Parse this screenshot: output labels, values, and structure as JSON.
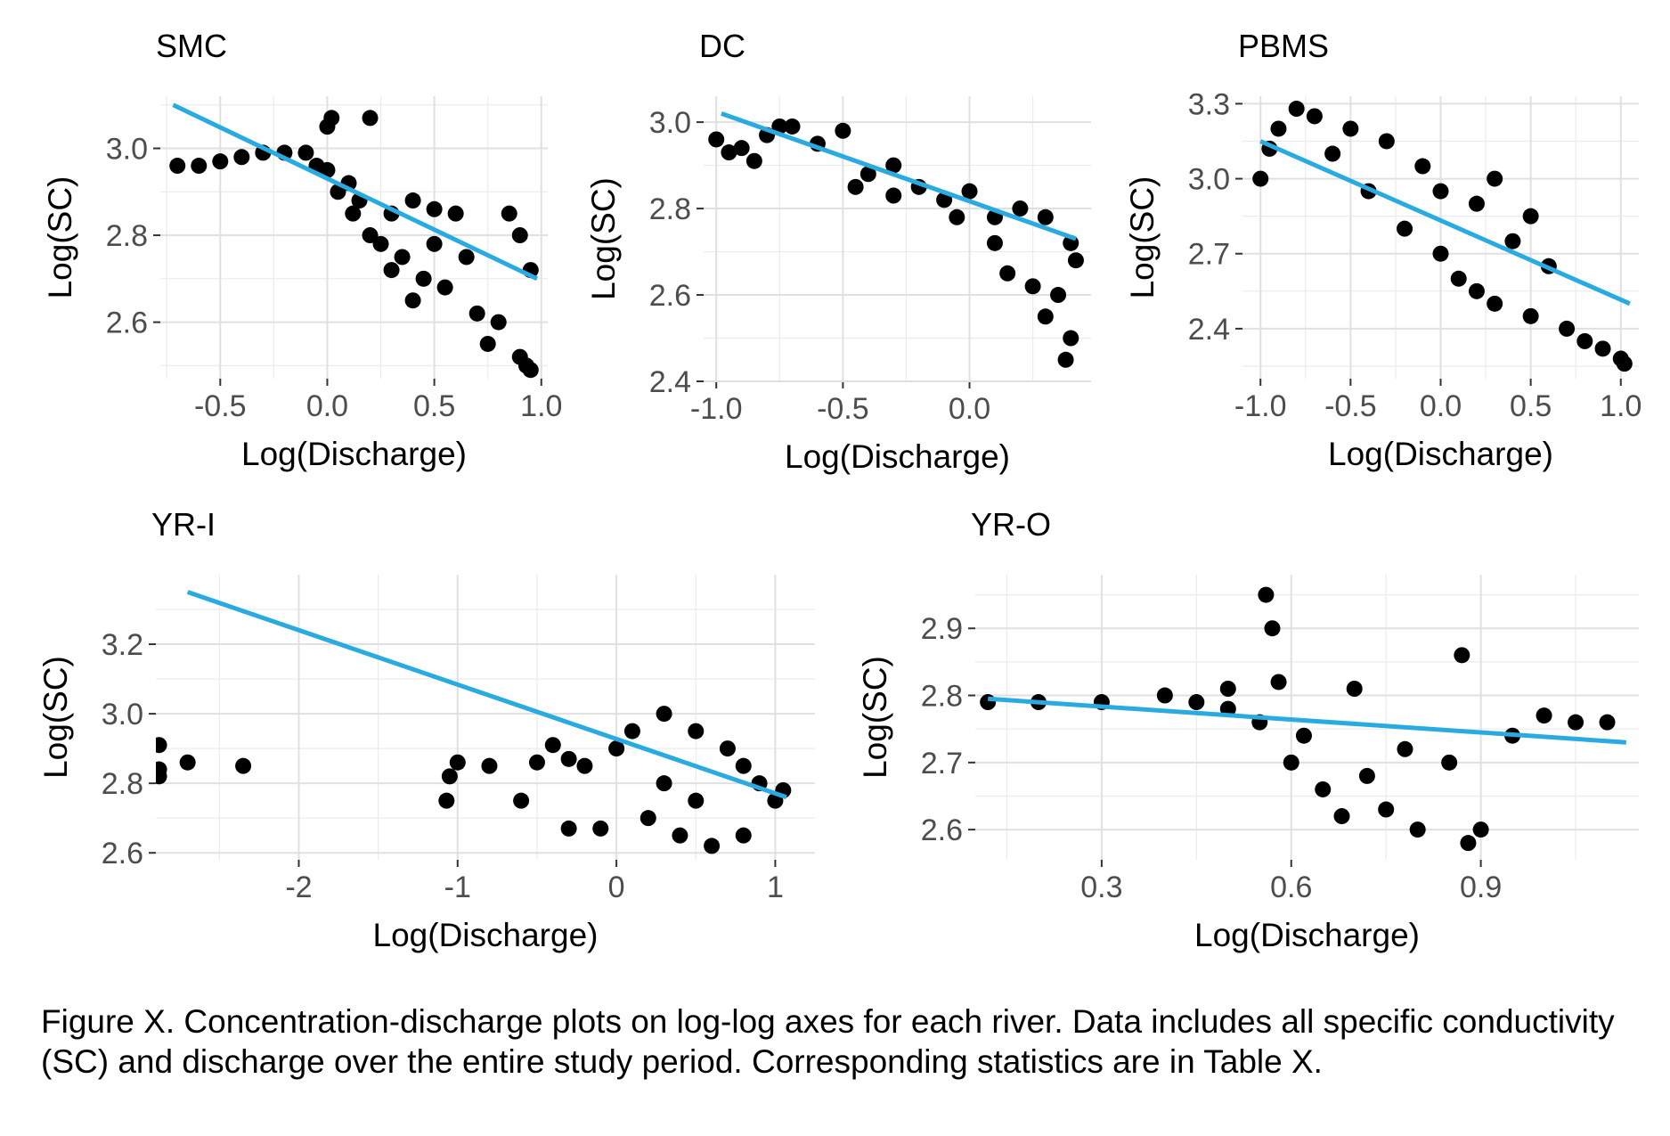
{
  "page": {
    "caption": "Figure X. Concentration-discharge plots on log-log axes for each river. Data includes all specific conductivity (SC) and discharge over the entire study period. Corresponding statistics are in Table X."
  },
  "colors": {
    "points": "#000000",
    "fit_line": "#29ABE2",
    "grid": "#E0E0E0"
  },
  "chart_data": [
    {
      "type": "scatter",
      "title": "SMC",
      "xlabel": "Log(Discharge)",
      "ylabel": "Log(SC)",
      "xlim": [
        -0.78,
        1.03
      ],
      "ylim": [
        2.47,
        3.12
      ],
      "xticks": [
        -0.5,
        0.0,
        0.5,
        1.0
      ],
      "xtick_labels": [
        "-0.5",
        "0.0",
        "0.5",
        "1.0"
      ],
      "yticks": [
        2.6,
        2.8,
        3.0
      ],
      "ytick_labels": [
        "2.6",
        "2.8",
        "3.0"
      ],
      "grid": true,
      "fit_line": [
        [
          -0.72,
          3.1
        ],
        [
          0.98,
          2.7
        ]
      ],
      "points": [
        [
          -0.7,
          2.96
        ],
        [
          -0.6,
          2.96
        ],
        [
          -0.5,
          2.97
        ],
        [
          -0.4,
          2.98
        ],
        [
          -0.3,
          2.99
        ],
        [
          -0.2,
          2.99
        ],
        [
          -0.1,
          2.99
        ],
        [
          -0.05,
          2.96
        ],
        [
          0.0,
          2.95
        ],
        [
          0.0,
          3.05
        ],
        [
          0.02,
          3.07
        ],
        [
          0.05,
          2.9
        ],
        [
          0.1,
          2.92
        ],
        [
          0.12,
          2.85
        ],
        [
          0.15,
          2.88
        ],
        [
          0.2,
          3.07
        ],
        [
          0.2,
          2.8
        ],
        [
          0.25,
          2.78
        ],
        [
          0.3,
          2.85
        ],
        [
          0.3,
          2.72
        ],
        [
          0.35,
          2.75
        ],
        [
          0.4,
          2.88
        ],
        [
          0.4,
          2.65
        ],
        [
          0.45,
          2.7
        ],
        [
          0.5,
          2.86
        ],
        [
          0.5,
          2.78
        ],
        [
          0.55,
          2.68
        ],
        [
          0.6,
          2.85
        ],
        [
          0.65,
          2.75
        ],
        [
          0.7,
          2.62
        ],
        [
          0.75,
          2.55
        ],
        [
          0.8,
          2.6
        ],
        [
          0.85,
          2.85
        ],
        [
          0.9,
          2.8
        ],
        [
          0.9,
          2.52
        ],
        [
          0.93,
          2.5
        ],
        [
          0.95,
          2.72
        ],
        [
          0.95,
          2.49
        ]
      ]
    },
    {
      "type": "scatter",
      "title": "DC",
      "xlabel": "Log(Discharge)",
      "ylabel": "Log(SC)",
      "xlim": [
        -1.05,
        0.48
      ],
      "ylim": [
        2.4,
        3.06
      ],
      "xticks": [
        -1.0,
        -0.5,
        0.0
      ],
      "xtick_labels": [
        "-1.0",
        "-0.5",
        "0.0"
      ],
      "yticks": [
        2.4,
        2.6,
        2.8,
        3.0
      ],
      "ytick_labels": [
        "2.4",
        "2.6",
        "2.8",
        "3.0"
      ],
      "grid": true,
      "fit_line": [
        [
          -0.98,
          3.02
        ],
        [
          0.42,
          2.73
        ]
      ],
      "points": [
        [
          -1.0,
          2.96
        ],
        [
          -0.95,
          2.93
        ],
        [
          -0.9,
          2.94
        ],
        [
          -0.85,
          2.91
        ],
        [
          -0.8,
          2.97
        ],
        [
          -0.75,
          2.99
        ],
        [
          -0.7,
          2.99
        ],
        [
          -0.6,
          2.95
        ],
        [
          -0.5,
          2.98
        ],
        [
          -0.45,
          2.85
        ],
        [
          -0.4,
          2.88
        ],
        [
          -0.3,
          2.9
        ],
        [
          -0.3,
          2.83
        ],
        [
          -0.2,
          2.85
        ],
        [
          -0.1,
          2.82
        ],
        [
          -0.05,
          2.78
        ],
        [
          0.0,
          2.84
        ],
        [
          0.1,
          2.78
        ],
        [
          0.1,
          2.72
        ],
        [
          0.15,
          2.65
        ],
        [
          0.2,
          2.8
        ],
        [
          0.25,
          2.62
        ],
        [
          0.3,
          2.78
        ],
        [
          0.3,
          2.55
        ],
        [
          0.35,
          2.6
        ],
        [
          0.38,
          2.45
        ],
        [
          0.4,
          2.5
        ],
        [
          0.4,
          2.72
        ],
        [
          0.42,
          2.68
        ]
      ]
    },
    {
      "type": "scatter",
      "title": "PBMS",
      "xlabel": "Log(Discharge)",
      "ylabel": "Log(SC)",
      "xlim": [
        -1.1,
        1.1
      ],
      "ylim": [
        2.2,
        3.33
      ],
      "xticks": [
        -1.0,
        -0.5,
        0.0,
        0.5,
        1.0
      ],
      "xtick_labels": [
        "-1.0",
        "-0.5",
        "0.0",
        "0.5",
        "1.0"
      ],
      "yticks": [
        2.4,
        2.7,
        3.0,
        3.3
      ],
      "ytick_labels": [
        "2.4",
        "2.7",
        "3.0",
        "3.3"
      ],
      "grid": true,
      "fit_line": [
        [
          -1.0,
          3.15
        ],
        [
          1.05,
          2.5
        ]
      ],
      "points": [
        [
          -1.0,
          3.0
        ],
        [
          -0.95,
          3.12
        ],
        [
          -0.9,
          3.2
        ],
        [
          -0.8,
          3.28
        ],
        [
          -0.7,
          3.25
        ],
        [
          -0.6,
          3.1
        ],
        [
          -0.5,
          3.2
        ],
        [
          -0.4,
          2.95
        ],
        [
          -0.3,
          3.15
        ],
        [
          -0.2,
          2.8
        ],
        [
          -0.1,
          3.05
        ],
        [
          0.0,
          2.7
        ],
        [
          0.0,
          2.95
        ],
        [
          0.1,
          2.6
        ],
        [
          0.2,
          2.9
        ],
        [
          0.2,
          2.55
        ],
        [
          0.3,
          3.0
        ],
        [
          0.3,
          2.5
        ],
        [
          0.4,
          2.75
        ],
        [
          0.5,
          2.85
        ],
        [
          0.5,
          2.45
        ],
        [
          0.6,
          2.65
        ],
        [
          0.7,
          2.4
        ],
        [
          0.8,
          2.35
        ],
        [
          0.9,
          2.32
        ],
        [
          1.0,
          2.28
        ],
        [
          1.02,
          2.26
        ]
      ]
    },
    {
      "type": "scatter",
      "title": "YR-I",
      "xlabel": "Log(Discharge)",
      "ylabel": "Log(SC)",
      "xlim": [
        -2.9,
        1.25
      ],
      "ylim": [
        2.58,
        3.4
      ],
      "xticks": [
        -2,
        -1,
        0,
        1
      ],
      "xtick_labels": [
        "-2",
        "-1",
        "0",
        "1"
      ],
      "yticks": [
        2.6,
        2.8,
        3.0,
        3.2
      ],
      "ytick_labels": [
        "2.6",
        "2.8",
        "3.0",
        "3.2"
      ],
      "grid": true,
      "fit_line": [
        [
          -2.7,
          3.35
        ],
        [
          1.07,
          2.76
        ]
      ],
      "points": [
        [
          -2.88,
          2.91
        ],
        [
          -2.88,
          2.84
        ],
        [
          -2.88,
          2.82
        ],
        [
          -2.7,
          2.86
        ],
        [
          -2.35,
          2.85
        ],
        [
          -1.07,
          2.75
        ],
        [
          -1.05,
          2.82
        ],
        [
          -1.0,
          2.86
        ],
        [
          -0.8,
          2.85
        ],
        [
          -0.6,
          2.75
        ],
        [
          -0.5,
          2.86
        ],
        [
          -0.4,
          2.91
        ],
        [
          -0.3,
          2.87
        ],
        [
          -0.2,
          2.85
        ],
        [
          -0.3,
          2.67
        ],
        [
          -0.1,
          2.67
        ],
        [
          0.0,
          2.9
        ],
        [
          0.1,
          2.95
        ],
        [
          0.2,
          2.7
        ],
        [
          0.3,
          3.0
        ],
        [
          0.3,
          2.8
        ],
        [
          0.4,
          2.65
        ],
        [
          0.5,
          2.95
        ],
        [
          0.5,
          2.75
        ],
        [
          0.6,
          2.62
        ],
        [
          0.7,
          2.9
        ],
        [
          0.8,
          2.85
        ],
        [
          0.8,
          2.65
        ],
        [
          0.9,
          2.8
        ],
        [
          1.0,
          2.75
        ],
        [
          1.05,
          2.78
        ]
      ]
    },
    {
      "type": "scatter",
      "title": "YR-O",
      "xlabel": "Log(Discharge)",
      "ylabel": "Log(SC)",
      "xlim": [
        0.1,
        1.15
      ],
      "ylim": [
        2.555,
        2.98
      ],
      "xticks": [
        0.3,
        0.6,
        0.9
      ],
      "xtick_labels": [
        "0.3",
        "0.6",
        "0.9"
      ],
      "yticks": [
        2.6,
        2.7,
        2.8,
        2.9
      ],
      "ytick_labels": [
        "2.6",
        "2.7",
        "2.8",
        "2.9"
      ],
      "grid": true,
      "fit_line": [
        [
          0.12,
          2.795
        ],
        [
          1.13,
          2.73
        ]
      ],
      "points": [
        [
          0.12,
          2.79
        ],
        [
          0.2,
          2.79
        ],
        [
          0.3,
          2.79
        ],
        [
          0.4,
          2.8
        ],
        [
          0.45,
          2.79
        ],
        [
          0.5,
          2.78
        ],
        [
          0.5,
          2.81
        ],
        [
          0.55,
          2.76
        ],
        [
          0.56,
          2.95
        ],
        [
          0.57,
          2.9
        ],
        [
          0.58,
          2.82
        ],
        [
          0.6,
          2.7
        ],
        [
          0.62,
          2.74
        ],
        [
          0.65,
          2.66
        ],
        [
          0.68,
          2.62
        ],
        [
          0.7,
          2.81
        ],
        [
          0.72,
          2.68
        ],
        [
          0.75,
          2.63
        ],
        [
          0.78,
          2.72
        ],
        [
          0.8,
          2.6
        ],
        [
          0.85,
          2.7
        ],
        [
          0.87,
          2.86
        ],
        [
          0.88,
          2.58
        ],
        [
          0.9,
          2.6
        ],
        [
          0.95,
          2.74
        ],
        [
          1.0,
          2.77
        ],
        [
          1.05,
          2.76
        ],
        [
          1.1,
          2.76
        ]
      ]
    }
  ]
}
